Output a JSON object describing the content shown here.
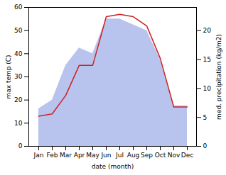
{
  "chart_data": {
    "type": "line",
    "categories": [
      "Jan",
      "Feb",
      "Mar",
      "Apr",
      "May",
      "Jun",
      "Jul",
      "Aug",
      "Sep",
      "Oct",
      "Nov",
      "Dec"
    ],
    "xlabel": "date (month)",
    "ylabel": "max temp (C)",
    "y2label": "med. precipitation (kg/m2)",
    "series": [
      {
        "type": "area",
        "axis": "y2",
        "color": "#b8c4ee",
        "values": [
          6.5,
          8,
          14,
          17,
          16,
          22,
          22,
          21,
          20,
          15,
          7,
          7
        ]
      },
      {
        "type": "line",
        "color": "#cc2222",
        "values": [
          13,
          14,
          22,
          35,
          35,
          56,
          57,
          56,
          52,
          38,
          17,
          17
        ]
      }
    ],
    "ylim": [
      0,
      60
    ],
    "yticks": [
      0,
      10,
      20,
      30,
      40,
      50,
      60
    ],
    "y2lim": [
      0,
      24
    ],
    "y2ticks": [
      0,
      5,
      10,
      15,
      20
    ]
  }
}
